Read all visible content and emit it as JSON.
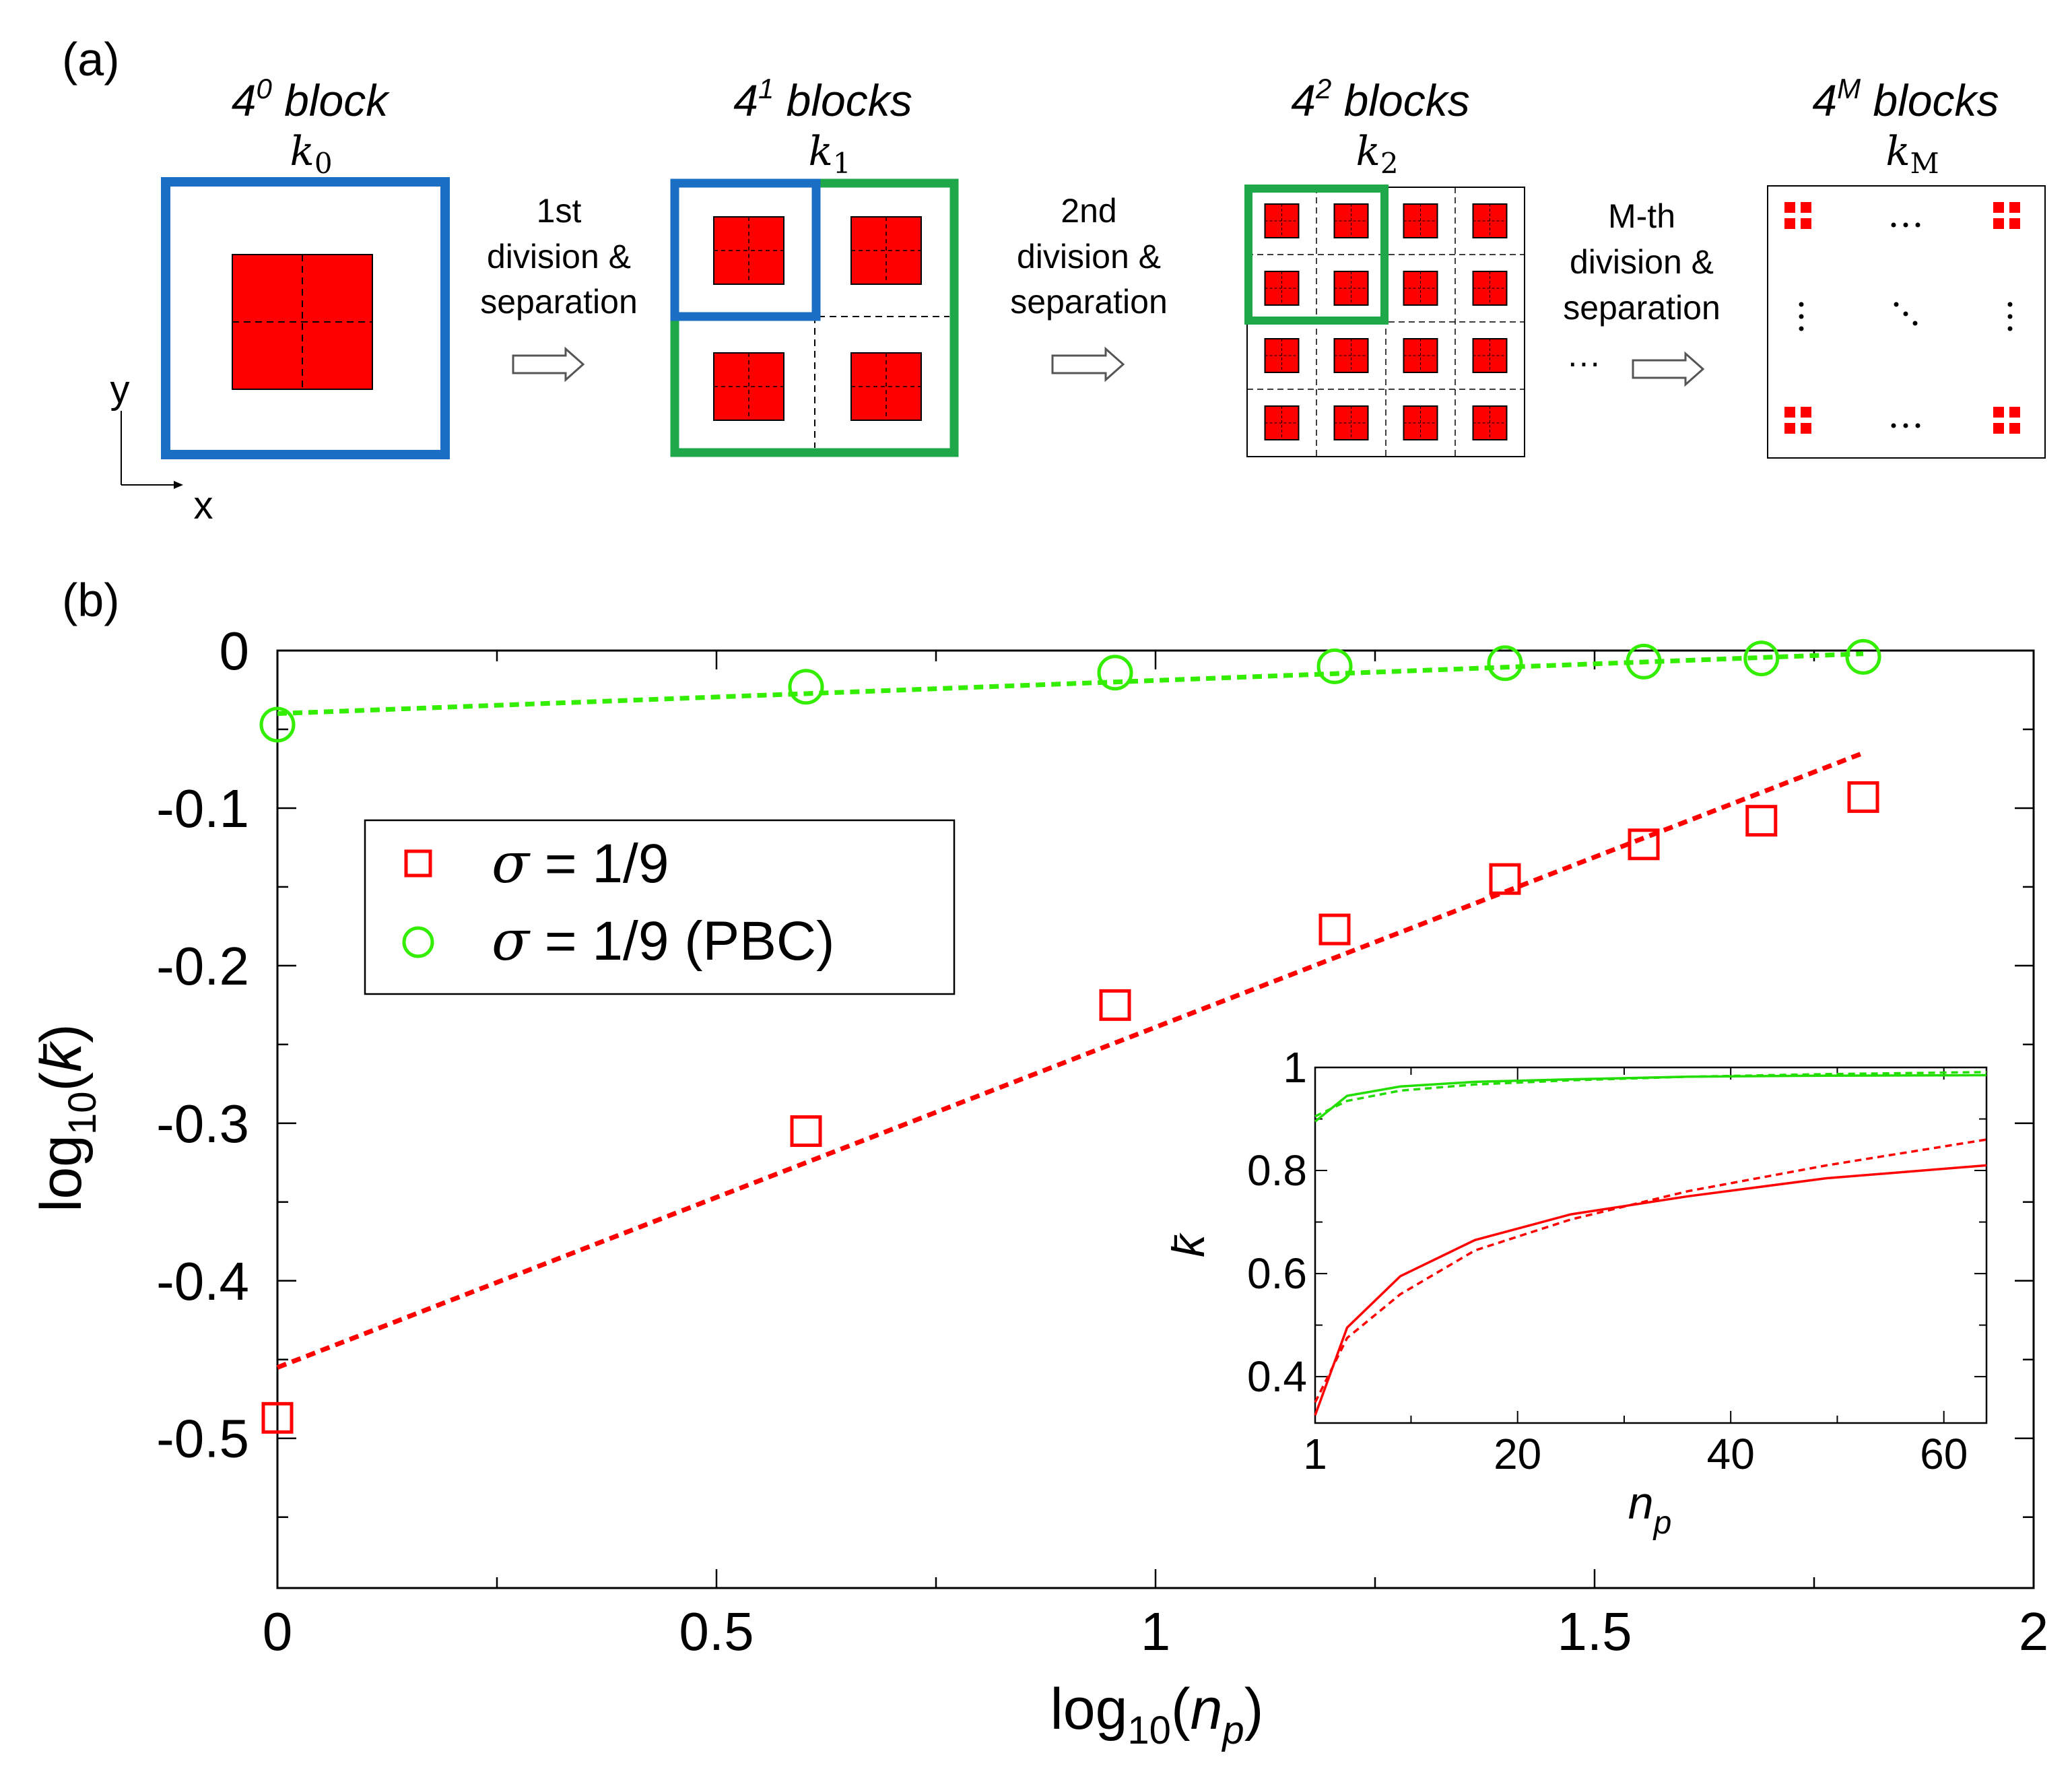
{
  "panel_a": {
    "label": "(a)",
    "steps": [
      {
        "count_base": "4",
        "count_exp": "0",
        "count_word": "block",
        "k_base": "k",
        "k_sub": "0"
      },
      {
        "count_base": "4",
        "count_exp": "1",
        "count_word": "blocks",
        "k_base": "k",
        "k_sub": "1"
      },
      {
        "count_base": "4",
        "count_exp": "2",
        "count_word": "blocks",
        "k_base": "k",
        "k_sub": "2"
      },
      {
        "count_base": "4",
        "count_exp": "M",
        "count_word": "blocks",
        "k_base": "k",
        "k_sub": "M"
      }
    ],
    "transitions": [
      {
        "line1": "1st",
        "line2": "division &",
        "line3": "separation"
      },
      {
        "line1": "2nd",
        "line2": "division &",
        "line3": "separation"
      },
      {
        "line1": "M-th",
        "line2": "division &",
        "line3": "separation"
      }
    ],
    "ellipsis": "···",
    "axis_x": "x",
    "axis_y": "y",
    "colors": {
      "block": "#ff0000",
      "blue": "#1a6fc4",
      "green": "#1fa84a"
    }
  },
  "panel_b": {
    "label": "(b)"
  },
  "chart_data": [
    {
      "type": "scatter",
      "xlabel": {
        "base": "log",
        "sub": "10",
        "open": "(",
        "var": "n",
        "var_sub": "p",
        "close": ")"
      },
      "ylabel": {
        "base": "log",
        "sub": "10",
        "open": "(",
        "var": "k̄",
        "close": ")"
      },
      "xlim": [
        0,
        2
      ],
      "ylim": [
        -0.595,
        0.0
      ],
      "xticks": [
        0,
        0.5,
        1,
        1.5,
        2
      ],
      "xtick_labels": [
        "0",
        "0.5",
        "1",
        "1.5",
        "2"
      ],
      "yticks": [
        0,
        -0.1,
        -0.2,
        -0.3,
        -0.4,
        -0.5
      ],
      "ytick_labels": [
        "0",
        "-0.1",
        "-0.2",
        "-0.3",
        "-0.4",
        "-0.5"
      ],
      "series": [
        {
          "name": "σ = 1/9",
          "legend_symbol": "σ",
          "legend_text": " = 1/9",
          "marker": "square",
          "color": "#ff0000",
          "x": [
            0,
            0.602,
            0.954,
            1.204,
            1.398,
            1.556,
            1.69,
            1.806
          ],
          "y": [
            -0.487,
            -0.305,
            -0.225,
            -0.177,
            -0.145,
            -0.123,
            -0.108,
            -0.093
          ],
          "fit": {
            "x": [
              0,
              1.806
            ],
            "y": [
              -0.455,
              -0.065
            ]
          }
        },
        {
          "name": "σ = 1/9 (PBC)",
          "legend_symbol": "σ",
          "legend_text": " = 1/9 (PBC)",
          "marker": "circle",
          "color": "#33ee00",
          "x": [
            0,
            0.602,
            0.954,
            1.204,
            1.398,
            1.556,
            1.69,
            1.806
          ],
          "y": [
            -0.047,
            -0.023,
            -0.014,
            -0.01,
            -0.008,
            -0.007,
            -0.005,
            -0.004
          ],
          "fit": {
            "x": [
              0,
              1.806
            ],
            "y": [
              -0.04,
              -0.002
            ]
          }
        }
      ],
      "legend_position": "upper-left"
    },
    {
      "type": "line",
      "xlabel": {
        "var": "n",
        "var_sub": "p"
      },
      "ylabel": {
        "var": "k̄"
      },
      "xlim": [
        1,
        64
      ],
      "ylim": [
        0.31,
        1.0
      ],
      "xticks": [
        1,
        20,
        40,
        60
      ],
      "xtick_labels": [
        "1",
        "20",
        "40",
        "60"
      ],
      "yticks": [
        1.0,
        0.8,
        0.6,
        0.4
      ],
      "ytick_labels": [
        "1",
        "0.8",
        "0.6",
        "0.4"
      ],
      "series": [
        {
          "name": "green solid",
          "color": "#22dd00",
          "style": "solid",
          "x": [
            1,
            4,
            9,
            16,
            25,
            36,
            49,
            64
          ],
          "y": [
            0.895,
            0.945,
            0.963,
            0.972,
            0.977,
            0.982,
            0.984,
            0.985
          ]
        },
        {
          "name": "green dashed",
          "color": "#22dd00",
          "style": "dashed",
          "x": [
            1,
            4,
            9,
            16,
            25,
            36,
            49,
            64
          ],
          "y": [
            0.905,
            0.935,
            0.955,
            0.967,
            0.975,
            0.982,
            0.987,
            0.991
          ]
        },
        {
          "name": "red solid",
          "color": "#ff0000",
          "style": "solid",
          "x": [
            1,
            4,
            9,
            16,
            25,
            36,
            49,
            64
          ],
          "y": [
            0.325,
            0.495,
            0.595,
            0.665,
            0.715,
            0.75,
            0.785,
            0.81
          ]
        },
        {
          "name": "red dashed",
          "color": "#ff0000",
          "style": "dashed",
          "x": [
            1,
            4,
            9,
            16,
            25,
            36,
            49,
            64
          ],
          "y": [
            0.35,
            0.475,
            0.56,
            0.645,
            0.705,
            0.76,
            0.81,
            0.86
          ]
        }
      ]
    }
  ]
}
